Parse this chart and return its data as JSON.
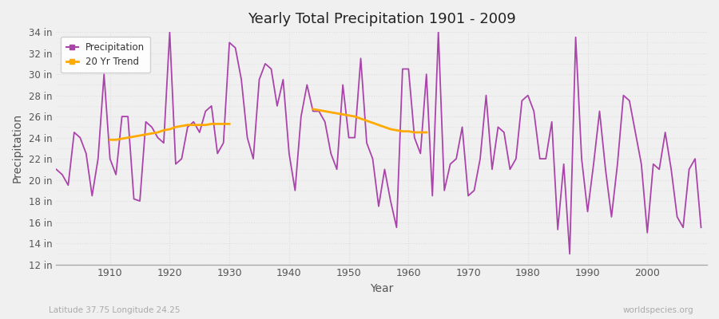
{
  "title": "Yearly Total Precipitation 1901 - 2009",
  "xlabel": "Year",
  "ylabel": "Precipitation",
  "credit": "worldspecies.org",
  "location_label": "Latitude 37.75 Longitude 24.25",
  "ylim_min": 12,
  "ylim_max": 34,
  "ytick_labels": [
    "12 in",
    "14 in",
    "16 in",
    "18 in",
    "20 in",
    "22 in",
    "24 in",
    "26 in",
    "28 in",
    "30 in",
    "32 in",
    "34 in"
  ],
  "ytick_values": [
    12,
    14,
    16,
    18,
    20,
    22,
    24,
    26,
    28,
    30,
    32,
    34
  ],
  "bg_color": "#f0f0f0",
  "plot_bg_color": "#f0f0f0",
  "grid_color": "#dddddd",
  "line_color": "#aa44aa",
  "trend_color": "#ffaa00",
  "precipitation_years": [
    1901,
    1902,
    1903,
    1904,
    1905,
    1906,
    1907,
    1908,
    1909,
    1910,
    1911,
    1912,
    1913,
    1914,
    1915,
    1916,
    1917,
    1918,
    1919,
    1920,
    1921,
    1922,
    1923,
    1924,
    1925,
    1926,
    1927,
    1928,
    1929,
    1930,
    1931,
    1932,
    1933,
    1934,
    1935,
    1936,
    1937,
    1938,
    1939,
    1940,
    1941,
    1942,
    1943,
    1944,
    1945,
    1946,
    1947,
    1948,
    1949,
    1950,
    1951,
    1952,
    1953,
    1954,
    1955,
    1956,
    1957,
    1958,
    1959,
    1960,
    1961,
    1962,
    1963,
    1964,
    1965,
    1966,
    1967,
    1968,
    1969,
    1970,
    1971,
    1972,
    1973,
    1974,
    1975,
    1976,
    1977,
    1978,
    1979,
    1980,
    1981,
    1982,
    1983,
    1984,
    1985,
    1986,
    1987,
    1988,
    1989,
    1990,
    1991,
    1992,
    1993,
    1994,
    1995,
    1996,
    1997,
    1998,
    1999,
    2000,
    2001,
    2002,
    2003,
    2004,
    2005,
    2006,
    2007,
    2008,
    2009
  ],
  "precipitation_values": [
    21.0,
    20.5,
    19.5,
    24.5,
    24.0,
    22.5,
    18.5,
    22.0,
    30.0,
    22.0,
    20.5,
    26.0,
    26.0,
    18.2,
    18.0,
    25.5,
    25.0,
    24.0,
    23.5,
    34.0,
    21.5,
    22.0,
    25.0,
    25.5,
    24.5,
    26.5,
    27.0,
    22.5,
    23.5,
    33.0,
    32.5,
    29.5,
    24.0,
    22.0,
    29.5,
    31.0,
    30.5,
    27.0,
    29.5,
    22.5,
    19.0,
    26.0,
    29.0,
    26.5,
    26.5,
    25.5,
    22.5,
    21.0,
    29.0,
    24.0,
    24.0,
    31.5,
    23.5,
    22.0,
    17.5,
    21.0,
    18.0,
    15.5,
    30.5,
    30.5,
    24.0,
    22.5,
    30.0,
    18.5,
    34.0,
    19.0,
    21.5,
    22.0,
    25.0,
    18.5,
    19.0,
    22.0,
    28.0,
    21.0,
    25.0,
    24.5,
    21.0,
    22.0,
    27.5,
    28.0,
    26.5,
    22.0,
    22.0,
    25.5,
    15.3,
    21.5,
    13.0,
    33.5,
    22.0,
    17.0,
    21.5,
    26.5,
    21.0,
    16.5,
    21.5,
    28.0,
    27.5,
    24.5,
    21.5,
    15.0,
    21.5,
    21.0,
    24.5,
    21.0,
    16.5,
    15.5,
    21.0,
    22.0,
    15.5
  ],
  "trend_years_1": [
    1910,
    1911,
    1912,
    1913,
    1914,
    1915,
    1916,
    1917,
    1918,
    1919,
    1920,
    1921,
    1922,
    1923,
    1924,
    1925,
    1926,
    1927,
    1928,
    1929,
    1930
  ],
  "trend_values_1": [
    23.8,
    23.8,
    23.9,
    24.0,
    24.1,
    24.2,
    24.3,
    24.4,
    24.5,
    24.7,
    24.8,
    25.0,
    25.1,
    25.2,
    25.2,
    25.2,
    25.2,
    25.3,
    25.3,
    25.3,
    25.3
  ],
  "trend_years_2": [
    1944,
    1945,
    1946,
    1947,
    1948,
    1949,
    1950,
    1951,
    1952,
    1953,
    1954,
    1955,
    1956,
    1957,
    1958,
    1959,
    1960,
    1961,
    1962,
    1963
  ],
  "trend_values_2": [
    26.7,
    26.6,
    26.5,
    26.4,
    26.3,
    26.2,
    26.1,
    26.0,
    25.8,
    25.6,
    25.4,
    25.2,
    25.0,
    24.8,
    24.7,
    24.6,
    24.6,
    24.5,
    24.5,
    24.5
  ]
}
